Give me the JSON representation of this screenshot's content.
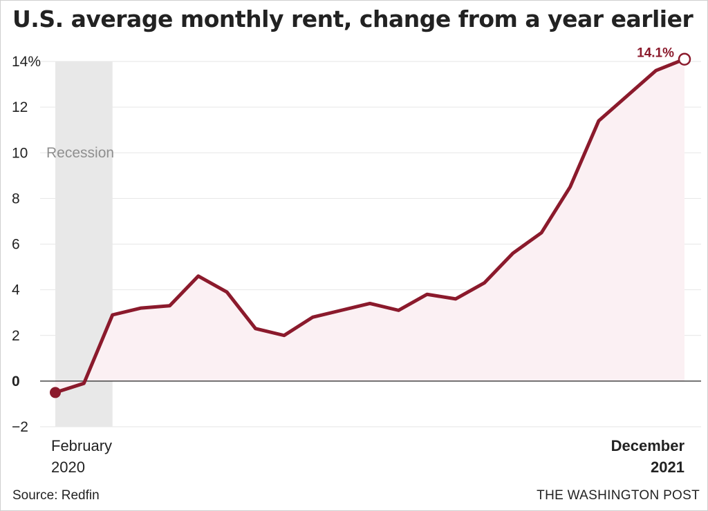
{
  "header": {
    "title": "U.S. average monthly rent, change from a year earlier"
  },
  "footer": {
    "source": "Source: Redfin",
    "publisher": "THE WASHINGTON POST"
  },
  "colors": {
    "line": "#8b1a2c",
    "area": "#fbf0f3",
    "recession": "#e8e8e8",
    "grid": "#e6e6e6",
    "zero_line": "#222222"
  },
  "chart_data": {
    "type": "line",
    "title": "U.S. average monthly rent, change from a year earlier",
    "x_start_label": [
      "February",
      "2020"
    ],
    "x_end_label": [
      "December",
      "2021"
    ],
    "y_ticks": [
      "−2",
      "0",
      "2",
      "4",
      "6",
      "8",
      "10",
      "12",
      "14%"
    ],
    "ylim": [
      -2,
      14
    ],
    "grid": true,
    "shading": {
      "label": "Recession",
      "from_index": 0,
      "to_index": 2
    },
    "end_annotation": "14.1%",
    "x": [
      "2020-02",
      "2020-03",
      "2020-04",
      "2020-05",
      "2020-06",
      "2020-07",
      "2020-08",
      "2020-09",
      "2020-10",
      "2020-11",
      "2020-12",
      "2021-01",
      "2021-02",
      "2021-03",
      "2021-04",
      "2021-05",
      "2021-06",
      "2021-07",
      "2021-08",
      "2021-09",
      "2021-10",
      "2021-11",
      "2021-12"
    ],
    "series": [
      {
        "values": [
          -0.5,
          -0.1,
          2.9,
          3.2,
          3.3,
          4.6,
          3.9,
          2.3,
          2.0,
          2.8,
          3.1,
          3.4,
          3.1,
          3.8,
          3.6,
          4.3,
          5.6,
          6.5,
          8.5,
          11.4,
          12.5,
          13.6,
          14.1
        ]
      }
    ]
  }
}
